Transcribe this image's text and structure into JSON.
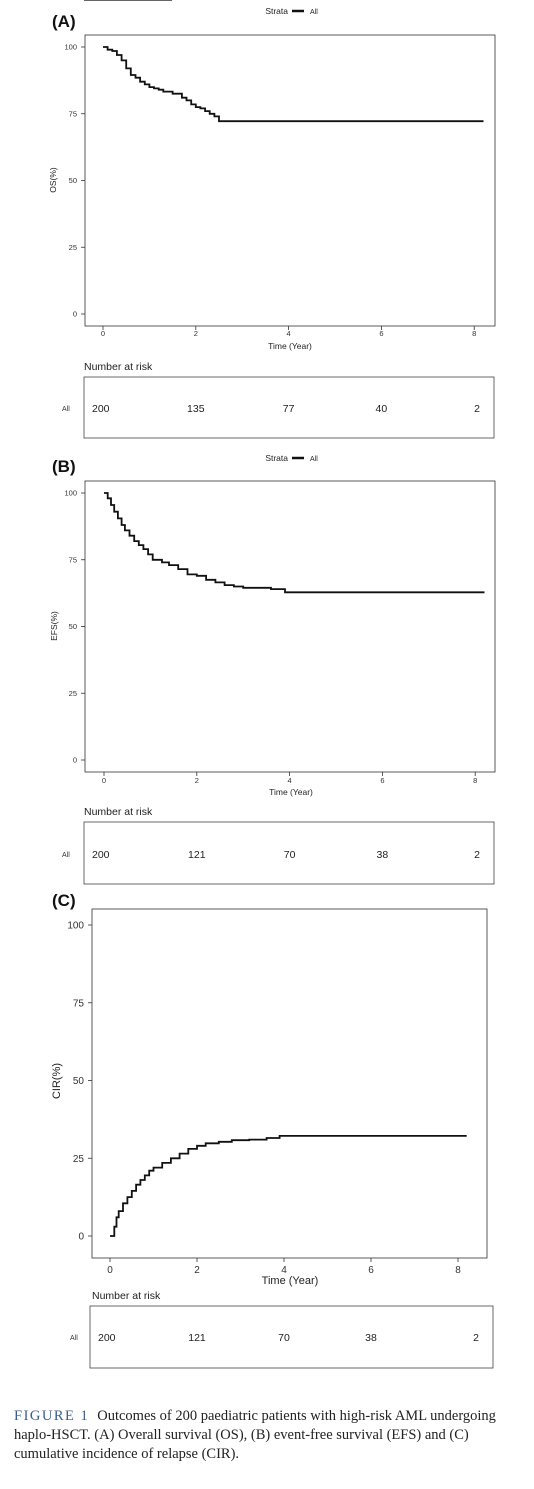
{
  "chart_data": [
    {
      "type": "line",
      "panel": "(A)",
      "legend_title": "Strata",
      "legend_entry": "All",
      "ylabel": "OS(%)",
      "xlabel": "Time (Year)",
      "ylim": [
        0,
        100
      ],
      "xlim": [
        0,
        8.3
      ],
      "y_ticks": [
        "0",
        "25",
        "50",
        "75",
        "100"
      ],
      "x_ticks": [
        "0",
        "2",
        "4",
        "6",
        "8"
      ],
      "series": [
        {
          "name": "All",
          "x": [
            0,
            0.1,
            0.2,
            0.3,
            0.4,
            0.5,
            0.6,
            0.7,
            0.8,
            0.9,
            1.0,
            1.1,
            1.2,
            1.3,
            1.5,
            1.7,
            1.8,
            1.9,
            2.0,
            2.1,
            2.2,
            2.3,
            2.4,
            2.5,
            8.2
          ],
          "y": [
            100,
            99,
            98.5,
            97,
            95,
            92,
            89.5,
            88.5,
            87,
            86,
            85,
            84.5,
            84,
            83.3,
            82.5,
            81,
            80,
            78.5,
            77.5,
            77,
            76,
            75,
            74,
            72.2,
            72.2
          ]
        }
      ],
      "risk_table": {
        "title": "Number at risk",
        "row_label": "All",
        "values": [
          "200",
          "135",
          "77",
          "40",
          "2"
        ]
      }
    },
    {
      "type": "line",
      "panel": "(B)",
      "legend_title": "Strata",
      "legend_entry": "All",
      "ylabel": "EFS(%)",
      "xlabel": "Time (Year)",
      "ylim": [
        0,
        100
      ],
      "xlim": [
        0,
        8.3
      ],
      "y_ticks": [
        "0",
        "25",
        "50",
        "75",
        "100"
      ],
      "x_ticks": [
        "0",
        "2",
        "4",
        "6",
        "8"
      ],
      "series": [
        {
          "name": "All",
          "x": [
            0,
            0.08,
            0.15,
            0.22,
            0.3,
            0.38,
            0.45,
            0.55,
            0.65,
            0.75,
            0.85,
            0.95,
            1.05,
            1.25,
            1.4,
            1.6,
            1.8,
            2.0,
            2.2,
            2.4,
            2.6,
            2.8,
            3.0,
            3.6,
            3.9,
            8.2
          ],
          "y": [
            100,
            98,
            95.5,
            93,
            90.5,
            88,
            86,
            84,
            82,
            80.5,
            79,
            77,
            75,
            74,
            73,
            71.5,
            69.5,
            69,
            67.5,
            66.5,
            65.5,
            65,
            64.5,
            64,
            62.8,
            62.8
          ]
        }
      ],
      "risk_table": {
        "title": "Number at risk",
        "row_label": "All",
        "values": [
          "200",
          "121",
          "70",
          "38",
          "2"
        ]
      }
    },
    {
      "type": "line",
      "panel": "(C)",
      "ylabel": "CIR(%)",
      "xlabel": "Time (Year)",
      "ylim": [
        0,
        100
      ],
      "xlim": [
        0,
        8.3
      ],
      "y_ticks": [
        "0",
        "25",
        "50",
        "75",
        "100"
      ],
      "x_ticks": [
        "0",
        "2",
        "4",
        "6",
        "8"
      ],
      "series": [
        {
          "name": "All",
          "x": [
            0,
            0.1,
            0.15,
            0.2,
            0.3,
            0.4,
            0.5,
            0.6,
            0.7,
            0.8,
            0.9,
            1.0,
            1.2,
            1.4,
            1.6,
            1.8,
            2.0,
            2.2,
            2.5,
            2.8,
            3.2,
            3.6,
            3.9,
            8.2
          ],
          "y": [
            0,
            3,
            6,
            8,
            10.5,
            12.5,
            14.5,
            16.5,
            18,
            19.5,
            21,
            22,
            23.5,
            25,
            26.5,
            28,
            29,
            29.8,
            30.3,
            30.8,
            31,
            31.5,
            32.2,
            32.2
          ]
        }
      ],
      "risk_table": {
        "title": "Number at risk",
        "row_label": "All",
        "values": [
          "200",
          "121",
          "70",
          "38",
          "2"
        ]
      }
    }
  ],
  "caption": {
    "label": "FIGURE 1",
    "text": "Outcomes of 200 paediatric patients with high-risk AML undergoing haplo-HSCT. (A) Overall survival (OS), (B) event-free survival (EFS) and (C) cumulative incidence of relapse (CIR)."
  }
}
